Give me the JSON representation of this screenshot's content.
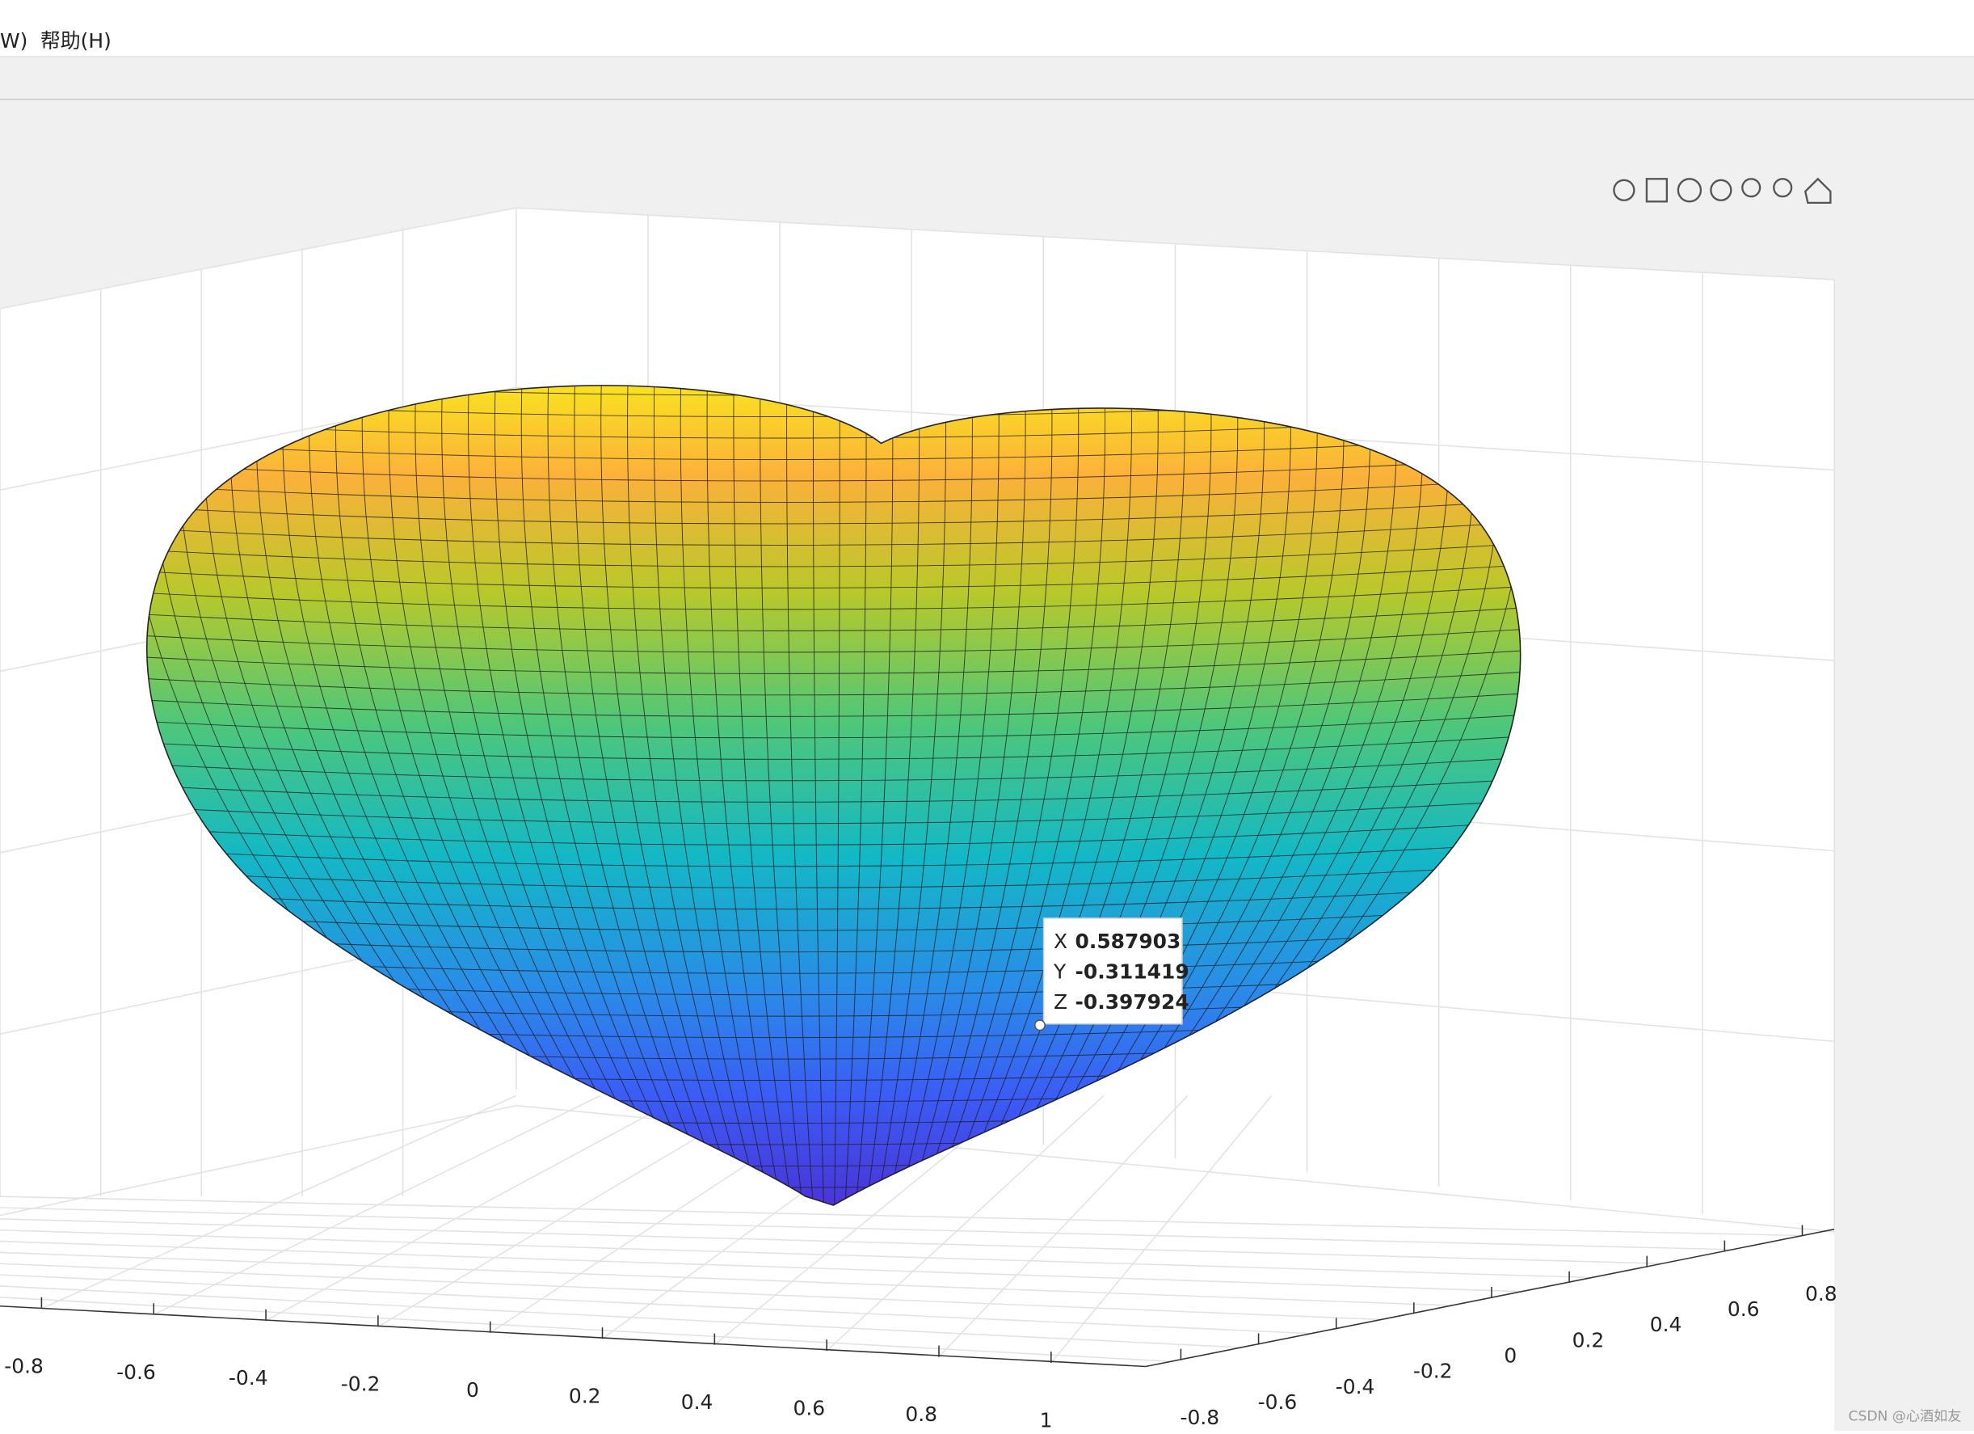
{
  "menu": [
    "W)",
    "帮助(H)"
  ],
  "datatip": {
    "rows": [
      {
        "label": "X",
        "value": 0.587903
      },
      {
        "label": "Y",
        "value": -0.311419
      },
      {
        "label": "Z",
        "value": -0.397924
      }
    ]
  },
  "x_ticks": [
    -0.8,
    -0.6,
    -0.4,
    -0.2,
    0,
    0.2,
    0.4,
    0.6,
    0.8,
    1
  ],
  "y_ticks": [
    -0.8,
    -0.6,
    -0.4,
    -0.2,
    0,
    0.2,
    0.4,
    0.6,
    0.8
  ],
  "watermark": "CSDN @心酒如友"
}
